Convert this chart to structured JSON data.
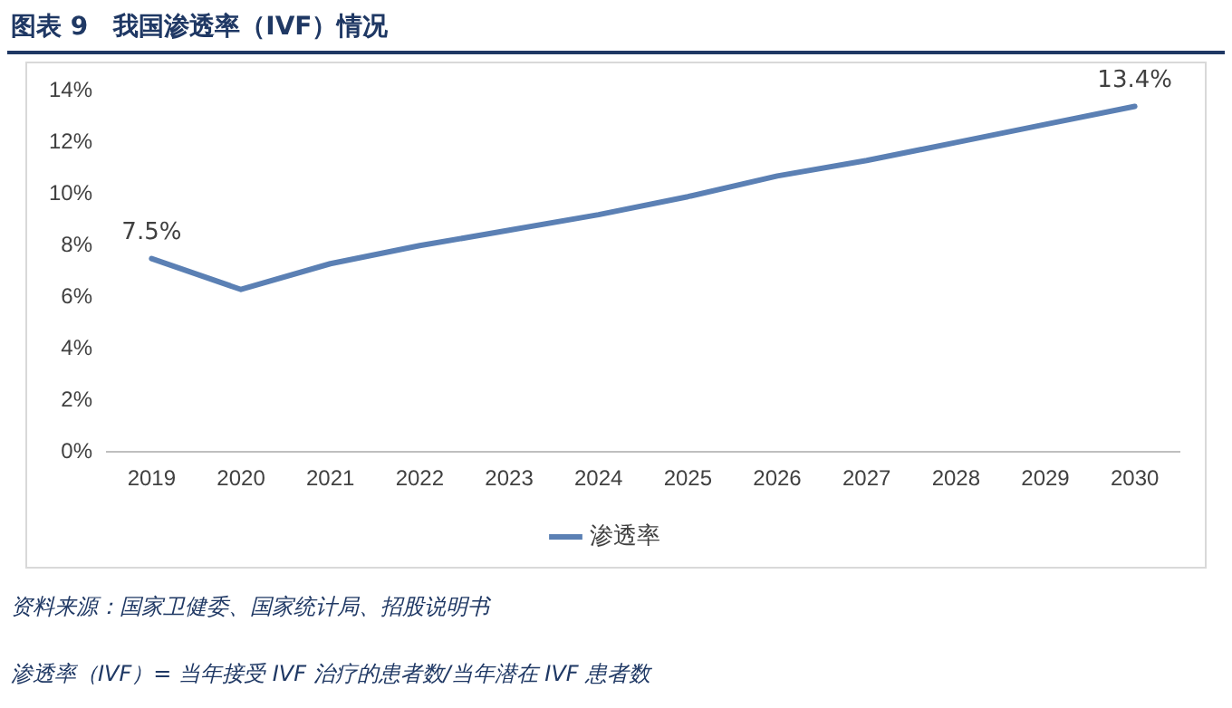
{
  "chart_data": {
    "type": "line",
    "title": "图表 9　我国渗透率（IVF）情况",
    "categories": [
      "2019",
      "2020",
      "2021",
      "2022",
      "2023",
      "2024",
      "2025",
      "2026",
      "2027",
      "2028",
      "2029",
      "2030"
    ],
    "series": [
      {
        "name": "渗透率",
        "color": "#5b80b4",
        "values": [
          7.5,
          6.3,
          7.3,
          8.0,
          8.6,
          9.2,
          9.9,
          10.7,
          11.3,
          12.0,
          12.7,
          13.4
        ],
        "value_labels": [
          "7.5%",
          null,
          null,
          null,
          null,
          null,
          null,
          null,
          null,
          null,
          null,
          "13.4%"
        ]
      }
    ],
    "ylim": [
      0,
      14
    ],
    "yticks": [
      {
        "value": 0,
        "label": "0%"
      },
      {
        "value": 2,
        "label": "2%"
      },
      {
        "value": 4,
        "label": "4%"
      },
      {
        "value": 6,
        "label": "6%"
      },
      {
        "value": 8,
        "label": "8%"
      },
      {
        "value": 10,
        "label": "10%"
      },
      {
        "value": 12,
        "label": "12%"
      },
      {
        "value": 14,
        "label": "14%"
      }
    ],
    "grid": false,
    "legend": "bottom",
    "marker": "none",
    "line_style": "solid",
    "annotations": [
      "资料来源：国家卫健委、国家统计局、招股说明书",
      "渗透率（IVF）= 当年接受 IVF 治疗的患者数/当年潜在 IVF 患者数"
    ]
  }
}
